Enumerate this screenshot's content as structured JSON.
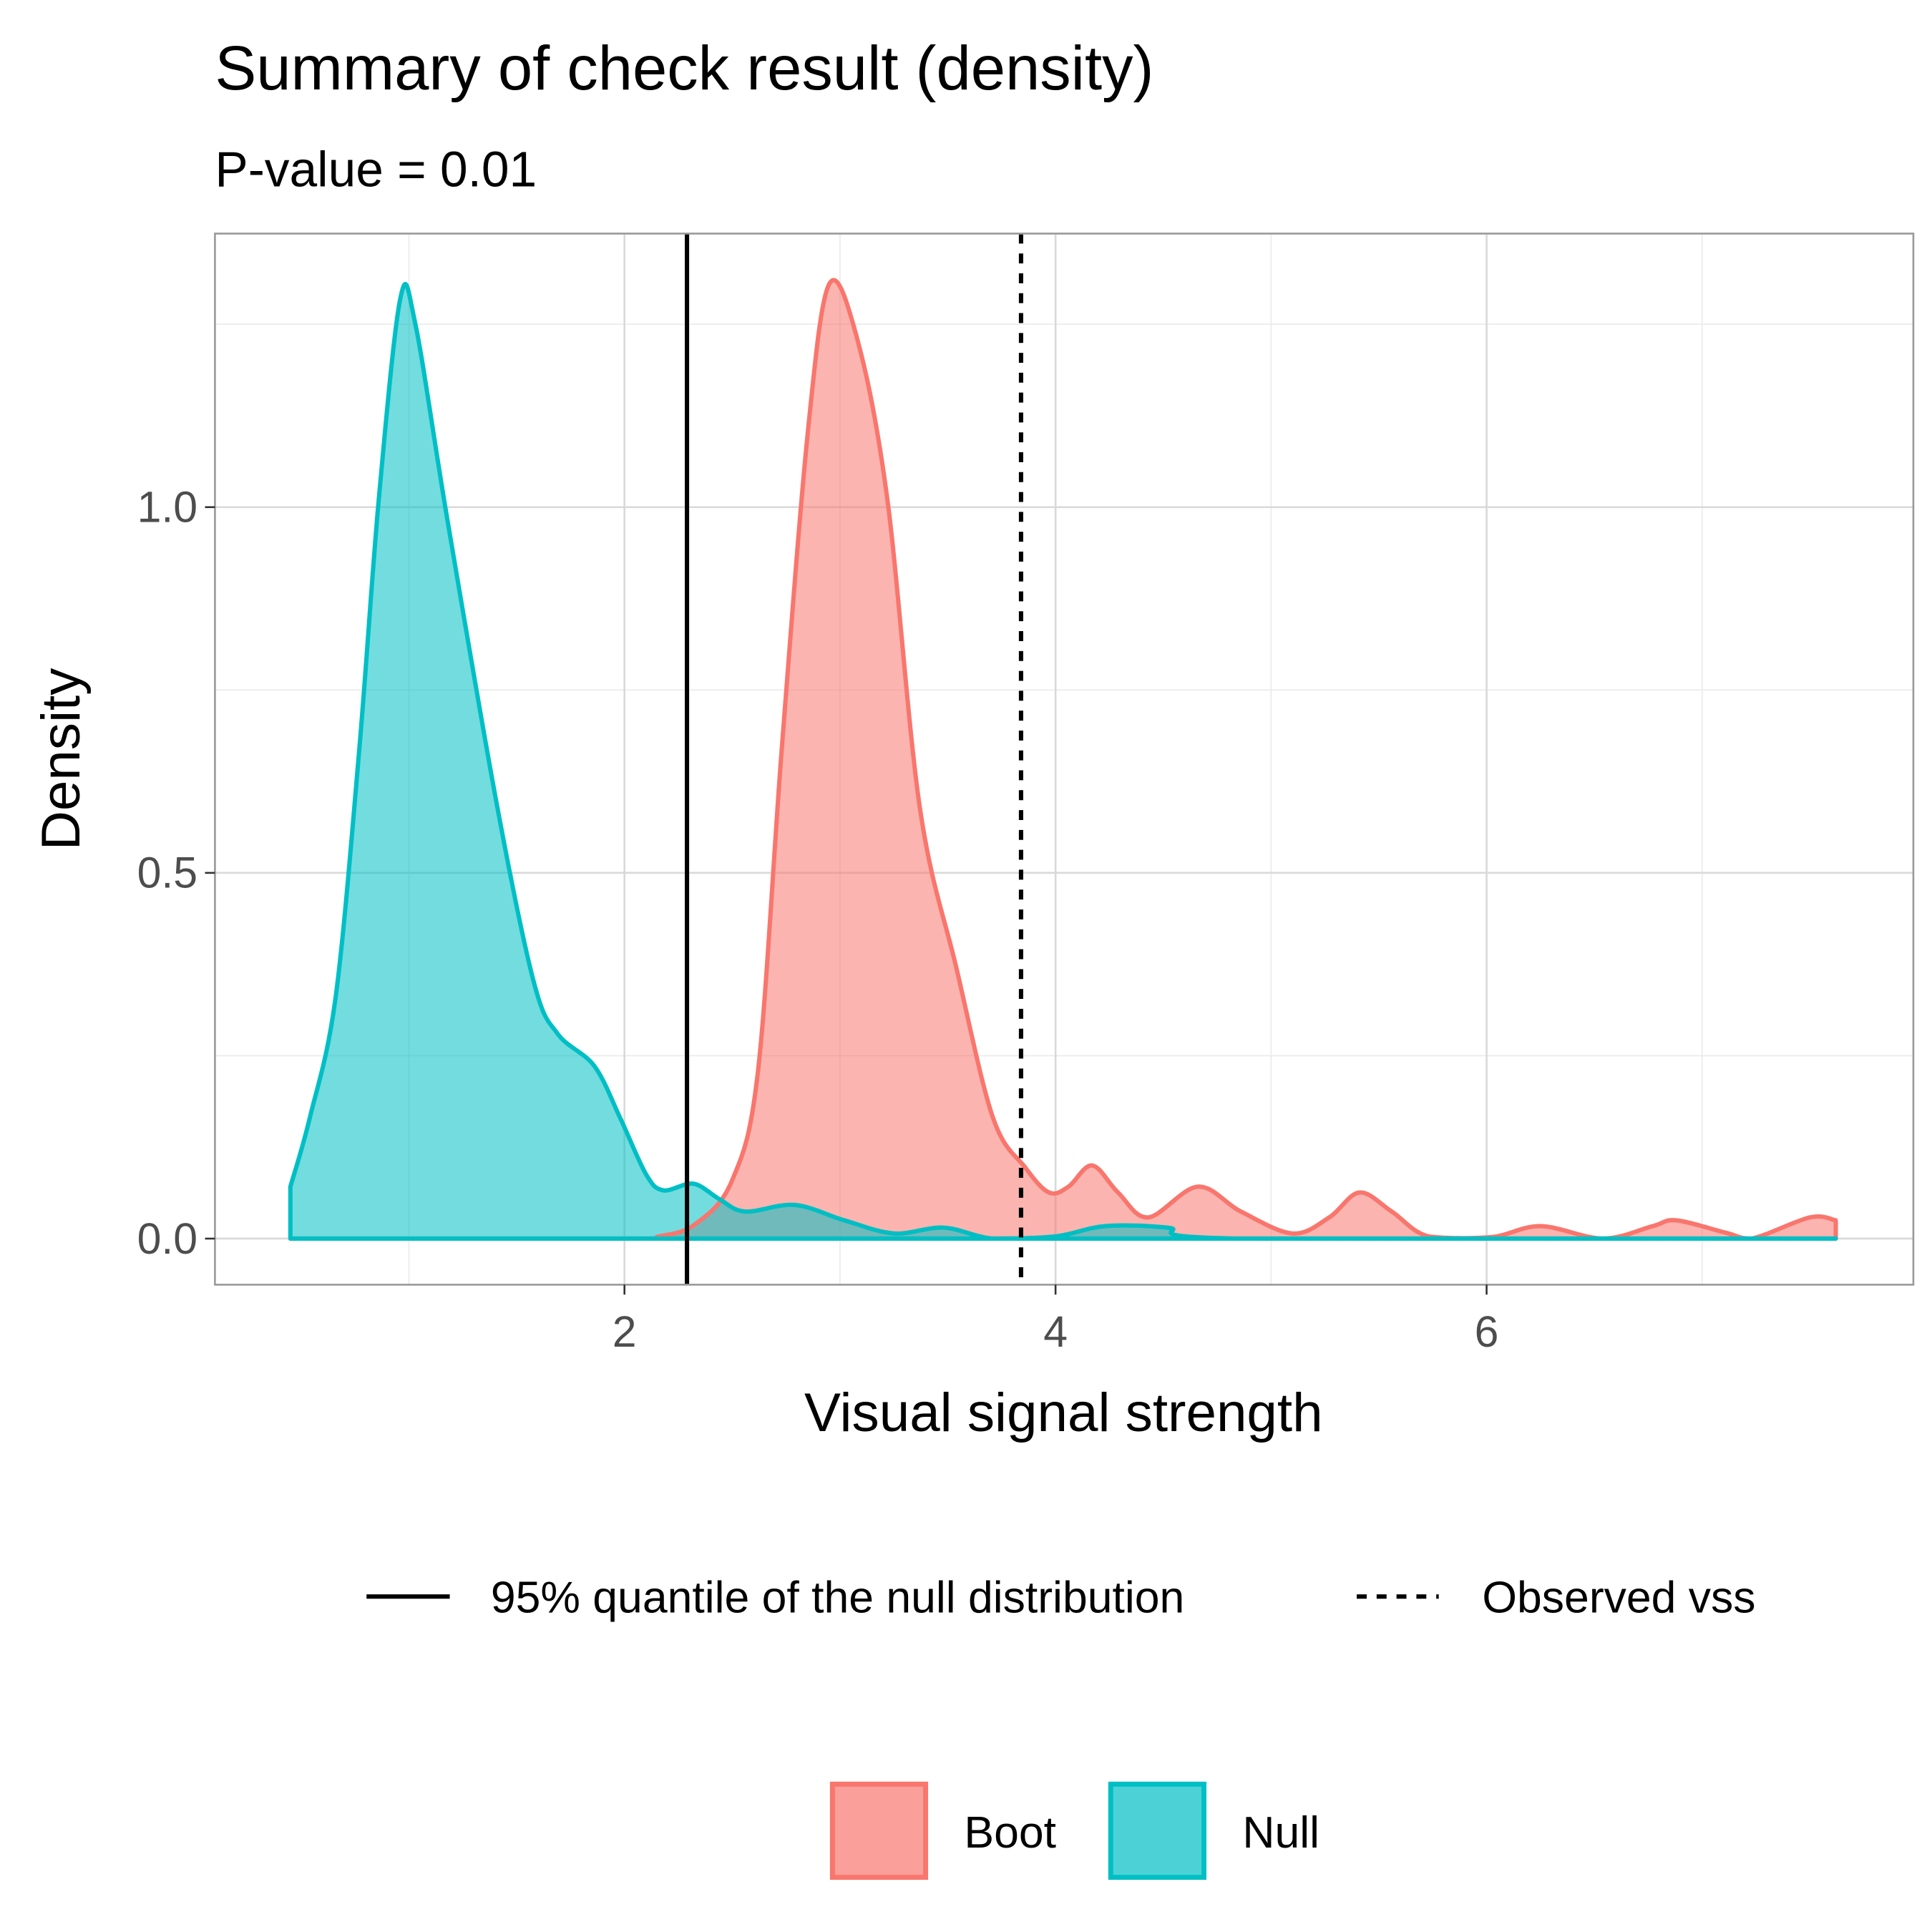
{
  "colors": {
    "boot": "#F8766D",
    "null": "#00BFC4",
    "boot_fill": "#F8766D",
    "null_fill": "#00BFC4"
  },
  "chart_data": {
    "type": "area",
    "title": "Summary of check result (density)",
    "subtitle": "P-value = 0.01",
    "xlabel": "Visual signal strength",
    "ylabel": "Density",
    "xlim": [
      0.1,
      7.98
    ],
    "ylim": [
      -0.063,
      1.374
    ],
    "xticks": [
      2,
      4,
      6
    ],
    "xtick_labels": [
      "2",
      "4",
      "6"
    ],
    "yticks": [
      0.0,
      0.5,
      1.0
    ],
    "ytick_labels": [
      "0.0",
      "0.5",
      "1.0"
    ],
    "grid": true,
    "series": [
      {
        "name": "Null",
        "color": "#00BFC4",
        "x": [
          0.45,
          0.54,
          0.66,
          0.77,
          0.86,
          0.96,
          1.03,
          1.18,
          1.41,
          1.58,
          1.69,
          1.86,
          1.98,
          2.1,
          2.18,
          2.32,
          2.44,
          2.56,
          2.79,
          3.02,
          3.25,
          3.48,
          3.71,
          4.0,
          4.23,
          4.52,
          4.86,
          7.62
        ],
        "y": [
          0.071,
          0.165,
          0.33,
          0.67,
          1.01,
          1.285,
          1.25,
          0.98,
          0.59,
          0.35,
          0.28,
          0.236,
          0.165,
          0.088,
          0.066,
          0.075,
          0.054,
          0.037,
          0.046,
          0.025,
          0.007,
          0.015,
          0,
          0.003,
          0.017,
          0.015,
          0,
          0
        ]
      },
      {
        "name": "Boot",
        "color": "#F8766D",
        "x": [
          0.45,
          2.0,
          2.16,
          2.33,
          2.5,
          2.62,
          2.73,
          2.85,
          2.95,
          3.08,
          3.22,
          3.37,
          3.54,
          3.71,
          3.86,
          3.97,
          4.06,
          4.17,
          4.29,
          4.43,
          4.66,
          4.86,
          5.1,
          5.27,
          5.41,
          5.56,
          5.73,
          6.02,
          6.25,
          6.54,
          6.77,
          6.88,
          7.11,
          7.23,
          7.5,
          7.62
        ],
        "y": [
          0,
          0,
          0.003,
          0.02,
          0.08,
          0.23,
          0.67,
          1.1,
          1.305,
          1.23,
          1.01,
          0.59,
          0.37,
          0.165,
          0.097,
          0.063,
          0.071,
          0.1,
          0.063,
          0.029,
          0.071,
          0.037,
          0.007,
          0.029,
          0.063,
          0.037,
          0.003,
          0.002,
          0.017,
          0,
          0.017,
          0.025,
          0.008,
          0,
          0.029,
          0.025
        ]
      }
    ],
    "vlines": [
      {
        "name": "95% quantile of the null distribution",
        "x": 2.29,
        "style": "solid"
      },
      {
        "name": "Observed vss",
        "x": 3.84,
        "style": "dashed"
      }
    ],
    "legend": {
      "lines": [
        "95% quantile of the null distribution",
        "Observed vss"
      ],
      "fills": [
        "Boot",
        "Null"
      ],
      "position": "bottom"
    }
  }
}
